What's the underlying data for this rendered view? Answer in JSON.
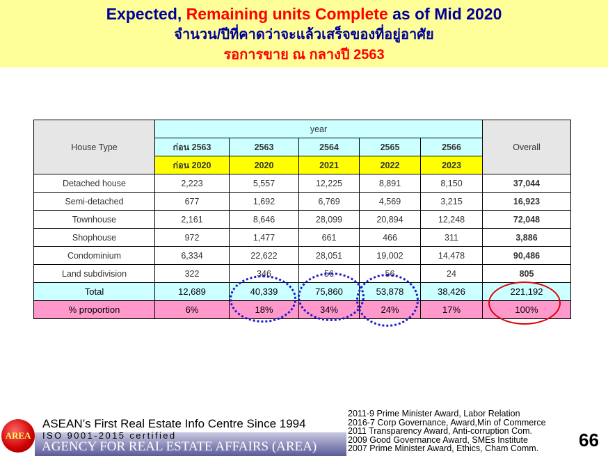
{
  "title": {
    "line1": [
      "Expected, ",
      "Remaining units Complete",
      " as of Mid 2020"
    ],
    "line2": "จำนวน/ปีที่คาดว่าจะแล้วเสร็จของที่อยู่อาศัย",
    "line3": "รอการขาย ณ กลางปี 2563"
  },
  "table": {
    "house_type_header": "House Type",
    "year_header": "year",
    "overall_header": "Overall",
    "thai_years": [
      "ก่อน 2563",
      "2563",
      "2564",
      "2565",
      "2566"
    ],
    "ad_years": [
      "ก่อน 2020",
      "2020",
      "2021",
      "2022",
      "2023"
    ],
    "rows": [
      {
        "label": "Detached house",
        "values": [
          "2,223",
          "5,557",
          "12,225",
          "8,891",
          "8,150"
        ],
        "overall": "37,044"
      },
      {
        "label": "Semi-detached",
        "values": [
          "677",
          "1,692",
          "6,769",
          "4,569",
          "3,215"
        ],
        "overall": "16,923"
      },
      {
        "label": "Townhouse",
        "values": [
          "2,161",
          "8,646",
          "28,099",
          "20,894",
          "12,248"
        ],
        "overall": "72,048"
      },
      {
        "label": "Shophouse",
        "values": [
          "972",
          "1,477",
          "661",
          "466",
          "311"
        ],
        "overall": "3,886"
      },
      {
        "label": "Condominium",
        "values": [
          "6,334",
          "22,622",
          "28,051",
          "19,002",
          "14,478"
        ],
        "overall": "90,486"
      },
      {
        "label": "Land subdivision",
        "values": [
          "322",
          "346",
          "56",
          "56",
          "24"
        ],
        "overall": "805"
      }
    ],
    "total": {
      "label": "Total",
      "values": [
        "12,689",
        "40,339",
        "75,860",
        "53,878",
        "38,426"
      ],
      "overall": "221,192"
    },
    "proportion": {
      "label": "% proportion",
      "values": [
        "6%",
        "18%",
        "34%",
        "24%",
        "17%"
      ],
      "overall": "100%"
    }
  },
  "footer": {
    "logo_text": "AREA",
    "tagline": "ASEAN’s First Real Estate Info Centre Since 1994",
    "iso": "ISO 9001-2015 certified",
    "agency": "AGENCY FOR REAL ESTATE AFFAIRS (AREA)",
    "awards": [
      "2011-9 Prime Minister Award, Labor Relation",
      "2016-7 Corp Governance, Award,Min of Commerce",
      "2011 Transparency Award, Anti-corruption Com.",
      "2009 Good Governance Award, SMEs Institute",
      "2007 Prime Minister Award, Ethics, Cham Comm."
    ],
    "page_number": "66"
  },
  "colors": {
    "banner": "#ffff99",
    "title_blue": "#000099",
    "title_red": "#ff0000",
    "header_cyan": "#ccffff",
    "header_yellow": "#ffff00",
    "proportion_pink": "#ff99cc",
    "highlight_dotted": "#1a1acc",
    "highlight_circle": "#dd0000"
  }
}
